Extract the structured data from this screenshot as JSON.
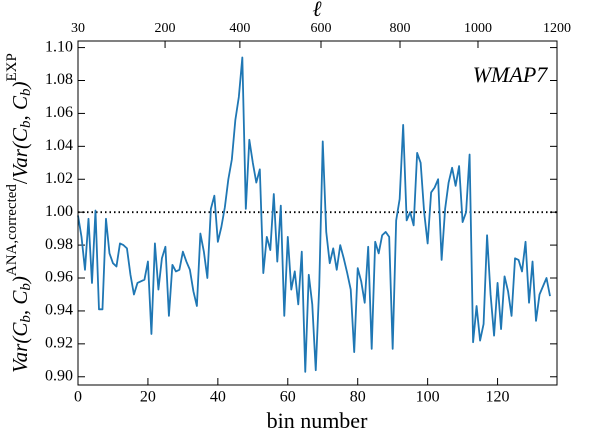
{
  "chart_data": {
    "type": "line",
    "xlabel": "bin number",
    "x2label": "ℓ",
    "ylabel_parts": [
      "Var(C",
      "b",
      ", C",
      "b",
      ")",
      "ANA,corrected",
      "/",
      "Var(C",
      "b",
      ", C",
      "b",
      ")",
      "EXP"
    ],
    "annotation": "WMAP7",
    "xlim": [
      0,
      137
    ],
    "ylim": [
      0.895,
      1.104
    ],
    "xticks": [
      0,
      20,
      40,
      60,
      80,
      100,
      120
    ],
    "x2ticks": [
      {
        "value": 0,
        "label": "30"
      },
      {
        "value": 24.9,
        "label": "200"
      },
      {
        "value": 46.3,
        "label": "400"
      },
      {
        "value": 69.5,
        "label": "600"
      },
      {
        "value": 92.1,
        "label": "800"
      },
      {
        "value": 114.4,
        "label": "1000"
      },
      {
        "value": 137,
        "label": "1200"
      }
    ],
    "yticks": [
      {
        "value": 0.9,
        "label": "0.90"
      },
      {
        "value": 0.92,
        "label": "0.92"
      },
      {
        "value": 0.94,
        "label": "0.94"
      },
      {
        "value": 0.96,
        "label": "0.96"
      },
      {
        "value": 0.98,
        "label": "0.98"
      },
      {
        "value": 1.0,
        "label": "1.00"
      },
      {
        "value": 1.02,
        "label": "1.02"
      },
      {
        "value": 1.04,
        "label": "1.04"
      },
      {
        "value": 1.06,
        "label": "1.06"
      },
      {
        "value": 1.08,
        "label": "1.08"
      },
      {
        "value": 1.1,
        "label": "1.10"
      }
    ],
    "hline": 1.0,
    "grid": false,
    "series": [
      {
        "color": "#1f77b4",
        "x": [
          0,
          1,
          2,
          3,
          4,
          5,
          6,
          7,
          8,
          9,
          10,
          11,
          12,
          13,
          14,
          15,
          16,
          17,
          18,
          19,
          20,
          21,
          22,
          23,
          24,
          25,
          26,
          27,
          28,
          29,
          30,
          31,
          32,
          33,
          34,
          35,
          36,
          37,
          38,
          39,
          40,
          41,
          42,
          43,
          44,
          45,
          46,
          47,
          48,
          49,
          50,
          51,
          52,
          53,
          54,
          55,
          56,
          57,
          58,
          59,
          60,
          61,
          62,
          63,
          64,
          65,
          66,
          67,
          68,
          69,
          70,
          71,
          72,
          73,
          74,
          75,
          76,
          77,
          78,
          79,
          80,
          81,
          82,
          83,
          84,
          85,
          86,
          87,
          88,
          89,
          90,
          91,
          92,
          93,
          94,
          95,
          96,
          97,
          98,
          99,
          100,
          101,
          102,
          103,
          104,
          105,
          106,
          107,
          108,
          109,
          110,
          111,
          112,
          113,
          114,
          115,
          116,
          117,
          118,
          119,
          120,
          121,
          122,
          123,
          124,
          125,
          126,
          127,
          128,
          129,
          130,
          131,
          132,
          133,
          134,
          135
        ],
        "values": [
          0.998,
          0.985,
          0.965,
          0.996,
          0.957,
          1.001,
          0.941,
          0.941,
          0.996,
          0.975,
          0.969,
          0.967,
          0.981,
          0.98,
          0.978,
          0.962,
          0.95,
          0.957,
          0.958,
          0.959,
          0.97,
          0.926,
          0.981,
          0.953,
          0.972,
          0.979,
          0.937,
          0.968,
          0.964,
          0.965,
          0.976,
          0.97,
          0.965,
          0.952,
          0.943,
          0.987,
          0.976,
          0.96,
          1.002,
          1.01,
          0.982,
          0.991,
          1.003,
          1.02,
          1.032,
          1.056,
          1.07,
          1.094,
          1.002,
          1.044,
          1.03,
          1.018,
          1.026,
          0.963,
          0.985,
          0.977,
          1.011,
          0.97,
          1.004,
          0.937,
          0.985,
          0.953,
          0.964,
          0.944,
          0.976,
          0.903,
          0.962,
          0.944,
          0.904,
          0.955,
          1.043,
          0.988,
          0.969,
          0.978,
          0.965,
          0.98,
          0.972,
          0.963,
          0.953,
          0.915,
          0.966,
          0.958,
          0.945,
          0.979,
          0.917,
          0.982,
          0.975,
          0.986,
          0.988,
          0.985,
          0.917,
          0.995,
          1.008,
          1.053,
          0.995,
          1.0,
          0.992,
          1.036,
          1.03,
          1.0,
          0.981,
          1.012,
          1.015,
          1.02,
          0.971,
          1.002,
          1.018,
          1.027,
          1.016,
          1.028,
          0.994,
          1.0,
          1.035,
          0.921,
          0.943,
          0.922,
          0.932,
          0.986,
          0.95,
          0.925,
          0.957,
          0.929,
          0.961,
          0.952,
          0.937,
          0.972,
          0.971,
          0.964,
          0.982,
          0.945,
          0.97,
          0.934,
          0.95,
          0.955,
          0.96,
          0.949
        ]
      }
    ]
  }
}
